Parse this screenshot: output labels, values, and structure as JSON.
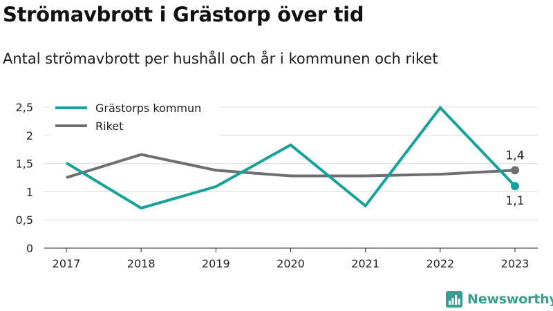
{
  "header": {
    "title": "Strömavbrott i Grästorp över tid",
    "subtitle": "Antal strömavbrott per hushåll och år i kommunen och riket"
  },
  "brand": {
    "name": "Newsworthy",
    "color": "#3a9e8f"
  },
  "chart_data": {
    "type": "line",
    "x": [
      "2017",
      "2018",
      "2019",
      "2020",
      "2021",
      "2022",
      "2023"
    ],
    "ylim": [
      0,
      2.5
    ],
    "yticks": [
      "0",
      "0,5",
      "1",
      "1,5",
      "2",
      "2,5"
    ],
    "ytick_values": [
      0,
      0.5,
      1,
      1.5,
      2,
      2.5
    ],
    "grid": true,
    "legend": "top-left",
    "series": [
      {
        "name": "Grästorps kommun",
        "color": "#16a29a",
        "values": [
          1.51,
          0.71,
          1.09,
          1.83,
          0.75,
          2.49,
          1.1
        ],
        "end_label": "1,1"
      },
      {
        "name": "Riket",
        "color": "#6e6e73",
        "values": [
          1.25,
          1.66,
          1.38,
          1.28,
          1.28,
          1.31,
          1.38
        ],
        "end_label": "1,4"
      }
    ]
  }
}
